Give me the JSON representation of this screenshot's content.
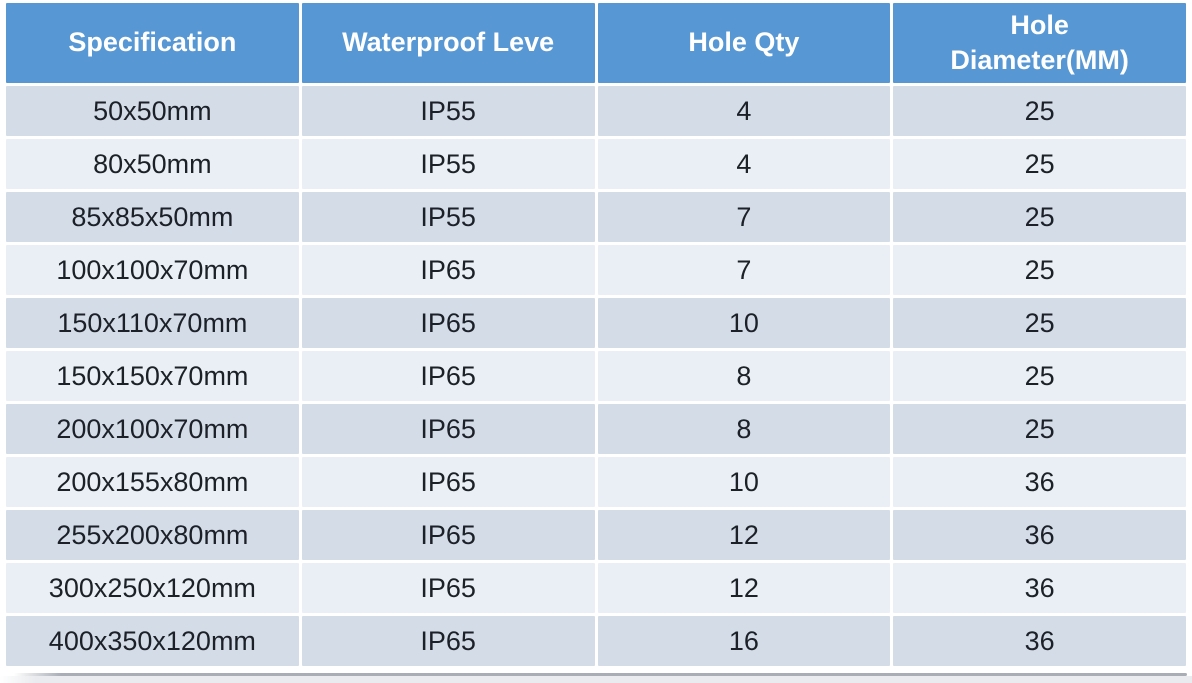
{
  "table": {
    "columns": [
      {
        "label": "Specification"
      },
      {
        "label": "Waterproof Leve"
      },
      {
        "label": "Hole Qty"
      },
      {
        "label": "Hole Diameter(MM)"
      }
    ],
    "rows": [
      {
        "spec": "50x50mm",
        "level": "IP55",
        "qty": "4",
        "dia": "25"
      },
      {
        "spec": "80x50mm",
        "level": "IP55",
        "qty": "4",
        "dia": "25"
      },
      {
        "spec": "85x85x50mm",
        "level": "IP55",
        "qty": "7",
        "dia": "25"
      },
      {
        "spec": "100x100x70mm",
        "level": "IP65",
        "qty": "7",
        "dia": "25"
      },
      {
        "spec": "150x110x70mm",
        "level": "IP65",
        "qty": "10",
        "dia": "25"
      },
      {
        "spec": "150x150x70mm",
        "level": "IP65",
        "qty": "8",
        "dia": "25"
      },
      {
        "spec": "200x100x70mm",
        "level": "IP65",
        "qty": "8",
        "dia": "25"
      },
      {
        "spec": "200x155x80mm",
        "level": "IP65",
        "qty": "10",
        "dia": "36"
      },
      {
        "spec": "255x200x80mm",
        "level": "IP65",
        "qty": "12",
        "dia": "36"
      },
      {
        "spec": "300x250x120mm",
        "level": "IP65",
        "qty": "12",
        "dia": "36"
      },
      {
        "spec": "400x350x120mm",
        "level": "IP65",
        "qty": "16",
        "dia": "36"
      }
    ]
  },
  "chart_data": {
    "type": "table",
    "title": "",
    "columns": [
      "Specification",
      "Waterproof Leve",
      "Hole Qty",
      "Hole Diameter(MM)"
    ],
    "rows": [
      [
        "50x50mm",
        "IP55",
        4,
        25
      ],
      [
        "80x50mm",
        "IP55",
        4,
        25
      ],
      [
        "85x85x50mm",
        "IP55",
        7,
        25
      ],
      [
        "100x100x70mm",
        "IP65",
        7,
        25
      ],
      [
        "150x110x70mm",
        "IP65",
        10,
        25
      ],
      [
        "150x150x70mm",
        "IP65",
        8,
        25
      ],
      [
        "200x100x70mm",
        "IP65",
        8,
        25
      ],
      [
        "200x155x80mm",
        "IP65",
        10,
        36
      ],
      [
        "255x200x80mm",
        "IP65",
        12,
        36
      ],
      [
        "300x250x120mm",
        "IP65",
        12,
        36
      ],
      [
        "400x350x120mm",
        "IP65",
        16,
        36
      ]
    ],
    "layout_hints": {
      "header_style": "blue band, white bold text",
      "row_striping": "odd rows darker blue-gray, even rows lighter",
      "cell_separators": "white 3px gaps"
    }
  },
  "colors": {
    "header_bg": "#5797d3",
    "header_text": "#ffffff",
    "row_odd": "#d4dce8",
    "row_even": "#eaeef5",
    "body_text": "#1c2128",
    "page_bg": "#ffffff",
    "strip_bg": "#e9ebee",
    "strip_line": "#a9aeb6"
  }
}
